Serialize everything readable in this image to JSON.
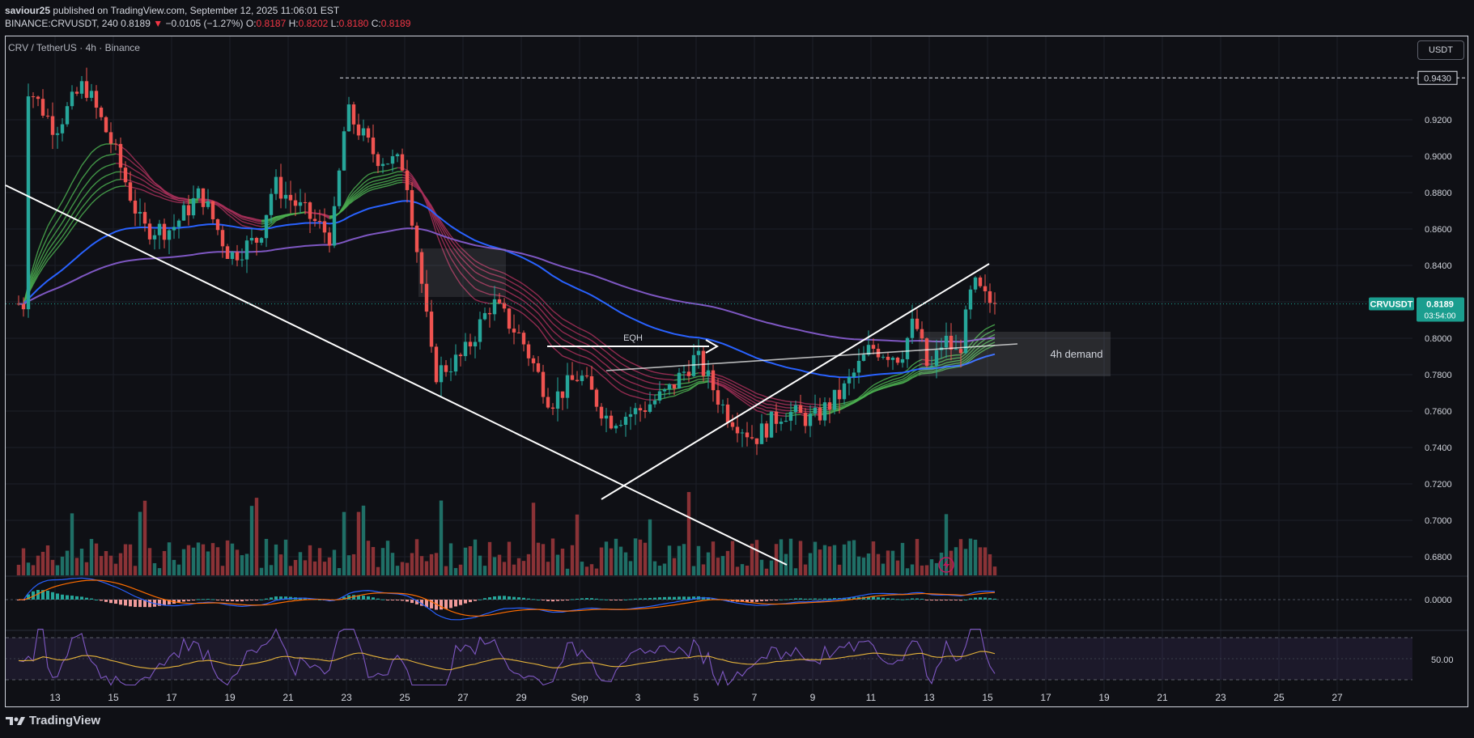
{
  "header": {
    "author": "saviour25",
    "published": "published on TradingView.com, September 12, 2025 11:06:01 EST",
    "symbol_line": "BINANCE:CRVUSDT, 240",
    "price": "0.8189",
    "change_arrow": "▼",
    "change": "−0.0105 (−1.27%)",
    "open_label": "O:",
    "open": "0.8187",
    "high_label": "H:",
    "high": "0.8202",
    "low_label": "L:",
    "low": "0.8180",
    "close_label": "C:",
    "close": "0.8189"
  },
  "pane_title": "CRV / TetherUS · 4h · Binance",
  "currency_button": "USDT",
  "annotations": {
    "eqh": "EQH",
    "demand": "4h demand"
  },
  "price_tag": {
    "symbol": "CRVUSDT",
    "price": "0.8189",
    "countdown": "03:54:00"
  },
  "high_tag": "0.9430",
  "footer": {
    "brand": "TradingView"
  },
  "colors": {
    "background": "#0f1015",
    "up": "#26a69a",
    "down": "#ef5350",
    "ma_blue": "#2962ff",
    "ma_purple": "#7e57c2",
    "accent_tag": "#1b9e8f"
  },
  "chart_data": {
    "type": "candlestick",
    "instrument": "BINANCE:CRVUSDT",
    "timeframe": "240",
    "y_axis": {
      "ticks": [
        "0.9200",
        "0.9000",
        "0.8800",
        "0.8600",
        "0.8400",
        "0.8200",
        "0.8000",
        "0.7800",
        "0.7600",
        "0.7400",
        "0.7200",
        "0.7000",
        "0.6800"
      ],
      "ylim": [
        0.665,
        0.95
      ]
    },
    "x_axis": {
      "ticks": [
        "13",
        "15",
        "17",
        "19",
        "21",
        "23",
        "25",
        "27",
        "29",
        "Sep",
        "3",
        "5",
        "7",
        "9",
        "11",
        "13",
        "15",
        "17",
        "19",
        "21",
        "23",
        "25",
        "27"
      ]
    },
    "price_path": [
      [
        12.0,
        0.94
      ],
      [
        13.0,
        0.915
      ],
      [
        14.0,
        0.94
      ],
      [
        15.0,
        0.905
      ],
      [
        16.0,
        0.86
      ],
      [
        17.0,
        0.86
      ],
      [
        18.0,
        0.88
      ],
      [
        19.0,
        0.845
      ],
      [
        20.0,
        0.855
      ],
      [
        20.5,
        0.885
      ],
      [
        21.5,
        0.87
      ],
      [
        22.5,
        0.855
      ],
      [
        23.0,
        0.925
      ],
      [
        24.0,
        0.9
      ],
      [
        25.0,
        0.895
      ],
      [
        25.5,
        0.84
      ],
      [
        26.0,
        0.78
      ],
      [
        27.0,
        0.79
      ],
      [
        28.0,
        0.82
      ],
      [
        29.0,
        0.8
      ],
      [
        30.0,
        0.765
      ],
      [
        31.0,
        0.78
      ],
      [
        32.0,
        0.755
      ],
      [
        33.0,
        0.76
      ],
      [
        34.0,
        0.77
      ],
      [
        35.0,
        0.79
      ],
      [
        36.0,
        0.76
      ],
      [
        37.0,
        0.745
      ],
      [
        38.0,
        0.76
      ],
      [
        39.0,
        0.755
      ],
      [
        40.0,
        0.77
      ],
      [
        41.0,
        0.795
      ],
      [
        42.0,
        0.79
      ],
      [
        42.5,
        0.81
      ],
      [
        43.0,
        0.78
      ],
      [
        43.5,
        0.8
      ],
      [
        44.0,
        0.79
      ],
      [
        44.5,
        0.83
      ],
      [
        45.0,
        0.82
      ],
      [
        45.3,
        0.819
      ]
    ],
    "horizontal_levels": [
      0.943
    ],
    "annotations": [
      "EQH",
      "4h demand"
    ],
    "current_price": 0.8189
  }
}
